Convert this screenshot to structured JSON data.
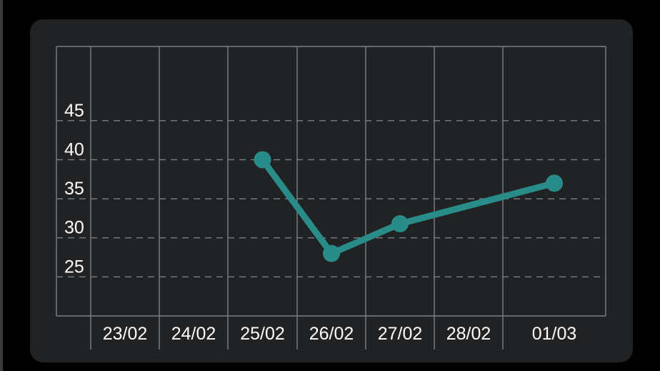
{
  "chart_data": {
    "type": "line",
    "categories": [
      "23/02",
      "24/02",
      "25/02",
      "26/02",
      "27/02",
      "28/02",
      "01/03"
    ],
    "series": [
      {
        "values": [
          null,
          null,
          40,
          28,
          31.8,
          null,
          37
        ]
      }
    ],
    "y_ticks": [
      25,
      30,
      35,
      40,
      45
    ],
    "ylim": [
      20,
      54.5
    ],
    "grid": true,
    "legend": "none",
    "colors": {
      "card_background": "#202224",
      "page_background": "#000000",
      "line": "#2a8c88",
      "grid": "#7d7f82",
      "text": "#ffffff"
    }
  }
}
